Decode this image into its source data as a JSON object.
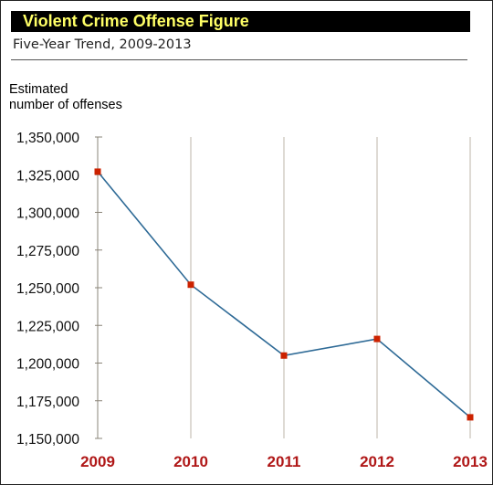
{
  "title": "Violent Crime Offense Figure",
  "subtitle": "Five-Year Trend, 2009-2013",
  "ylabel_lines": [
    "Estimated",
    "number of offenses"
  ],
  "colors": {
    "title_bar": "#000000",
    "title_text": "#ffff66",
    "line": "#2e6a96",
    "marker": "#cc2200",
    "year_label": "#b01818",
    "gridline": "#bdb6a8"
  },
  "chart_data": {
    "type": "line",
    "title": "Violent Crime Offense Figure",
    "subtitle": "Five-Year Trend, 2009-2013",
    "ylabel": "Estimated number of offenses",
    "xlabel": "",
    "categories": [
      "2009",
      "2010",
      "2011",
      "2012",
      "2013"
    ],
    "series": [
      {
        "values": [
          1327000,
          1252000,
          1205000,
          1216000,
          1164000
        ]
      }
    ],
    "ylim": [
      1150000,
      1350000
    ],
    "yticks": [
      1350000,
      1325000,
      1300000,
      1275000,
      1250000,
      1225000,
      1200000,
      1175000,
      1150000
    ],
    "ytick_labels": [
      "1,350,000",
      "1,325,000",
      "1,300,000",
      "1,275,000",
      "1,250,000",
      "1,225,000",
      "1,200,000",
      "1,175,000",
      "1,150,000"
    ],
    "grid": "vertical",
    "legend": "none"
  }
}
